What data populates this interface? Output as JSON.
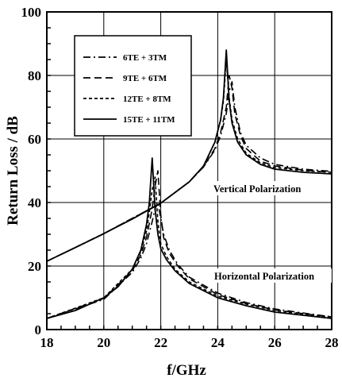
{
  "chart_data": {
    "type": "line",
    "title": "",
    "xlabel": "f/GHz",
    "ylabel": "Return Loss / dB",
    "xlim": [
      18,
      28
    ],
    "ylim": [
      0,
      100
    ],
    "x_ticks": [
      18,
      20,
      22,
      24,
      26,
      28
    ],
    "y_ticks": [
      0,
      20,
      40,
      60,
      80,
      100
    ],
    "grid": true,
    "legend_position": "top-left",
    "legend": [
      {
        "label": "6TE + 3TM",
        "style": "dash-dot"
      },
      {
        "label": "9TE + 6TM",
        "style": "long-dash"
      },
      {
        "label": "12TE + 8TM",
        "style": "short-dash"
      },
      {
        "label": "15TE + 11TM",
        "style": "solid"
      }
    ],
    "annotations": [
      "Vertical Polarization",
      "Horizontal Polarization"
    ],
    "groups": [
      {
        "name": "Vertical Polarization",
        "series": [
          {
            "style": "solid",
            "x": [
              18,
              19,
              20,
              21,
              22,
              23,
              23.5,
              23.9,
              24.1,
              24.2,
              24.3,
              24.4,
              24.5,
              24.7,
              25.0,
              25.5,
              26,
              27,
              28
            ],
            "y": [
              21.5,
              25.8,
              30.2,
              34.8,
              39.8,
              46.5,
              51.5,
              59,
              66,
              73,
              88,
              72,
              65,
              59,
              55,
              52,
              50.5,
              49.5,
              49
            ]
          },
          {
            "style": "short-dash",
            "x": [
              18,
              20,
              22,
              23,
              23.5,
              23.9,
              24.1,
              24.2,
              24.3,
              24.4,
              24.5,
              24.7,
              25.0,
              25.5,
              26,
              27,
              28
            ],
            "y": [
              21.5,
              30.2,
              39.8,
              46.5,
              51.5,
              59,
              66,
              72,
              85,
              73,
              66,
              60,
              55.5,
              52.5,
              51,
              50,
              49.5
            ]
          },
          {
            "style": "long-dash",
            "x": [
              18,
              20,
              22,
              23,
              23.5,
              23.9,
              24.1,
              24.3,
              24.4,
              24.5,
              24.6,
              24.8,
              25.0,
              25.5,
              26,
              27,
              28
            ],
            "y": [
              21.5,
              30.2,
              39.8,
              46.5,
              51.2,
              57,
              62,
              70,
              80,
              76,
              68,
              61,
              57,
              53,
              51.5,
              50.2,
              49.5
            ]
          },
          {
            "style": "dash-dot",
            "x": [
              18,
              20,
              22,
              23,
              23.5,
              23.9,
              24.1,
              24.3,
              24.4,
              24.5,
              24.6,
              24.8,
              25.0,
              25.5,
              26,
              27,
              28
            ],
            "y": [
              21.5,
              30.2,
              39.8,
              46.5,
              51.2,
              56.5,
              61,
              68,
              75,
              78,
              70,
              62,
              58,
              54,
              52,
              50.5,
              49.8
            ]
          }
        ]
      },
      {
        "name": "Horizontal Polarization",
        "series": [
          {
            "style": "solid",
            "x": [
              18,
              19,
              20,
              20.5,
              21,
              21.3,
              21.5,
              21.6,
              21.7,
              21.8,
              21.9,
              22.0,
              22.2,
              22.5,
              23,
              24,
              25,
              26,
              27,
              28
            ],
            "y": [
              3.5,
              6,
              10,
              13.5,
              19,
              25,
              33,
              40,
              54,
              38,
              30,
              25.5,
              22,
              18.5,
              14.5,
              10,
              7.5,
              5.5,
              4.5,
              3.5
            ]
          },
          {
            "style": "short-dash",
            "x": [
              18,
              20,
              21,
              21.3,
              21.5,
              21.6,
              21.7,
              21.8,
              21.9,
              22.0,
              22.2,
              22.5,
              23,
              24,
              25,
              26,
              27,
              28
            ],
            "y": [
              3.5,
              10,
              19,
              24.5,
              31,
              37,
              44,
              48,
              34,
              27,
              23,
              19,
              15,
              10.5,
              8,
              6,
              4.8,
              3.8
            ]
          },
          {
            "style": "long-dash",
            "x": [
              18,
              20,
              21,
              21.3,
              21.5,
              21.7,
              21.8,
              21.9,
              22.0,
              22.1,
              22.3,
              22.6,
              23,
              24,
              25,
              26,
              27,
              28
            ],
            "y": [
              3.5,
              9.8,
              18.5,
              23.5,
              29,
              38,
              45,
              50,
              36,
              29,
              24,
              20,
              16,
              11,
              8.2,
              6.2,
              5,
              4
            ]
          },
          {
            "style": "dash-dot",
            "x": [
              18,
              20,
              21,
              21.3,
              21.5,
              21.7,
              21.8,
              21.9,
              22.0,
              22.1,
              22.3,
              22.6,
              23,
              24,
              25,
              26,
              27,
              28
            ],
            "y": [
              3.5,
              9.5,
              18,
              22.5,
              27,
              34,
              38,
              40,
              35,
              30,
              25,
              20.5,
              16.5,
              11.5,
              8.5,
              6.5,
              5.2,
              4
            ]
          }
        ]
      }
    ]
  }
}
